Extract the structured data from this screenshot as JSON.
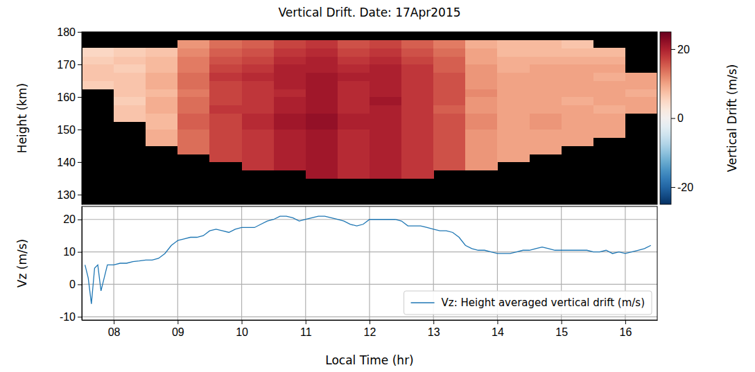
{
  "chart_data": [
    {
      "type": "heatmap",
      "title": "Vertical Drift. Date: 17Apr2015",
      "y_label": "Height (km)",
      "xlim": [
        7.5,
        16.5
      ],
      "ylim": [
        127,
        180
      ],
      "yticks": [
        130,
        140,
        150,
        160,
        170,
        180
      ],
      "tick_labels": "y",
      "cells": {
        "x": [
          7.75,
          8.25,
          8.75,
          9.25,
          9.75,
          10.25,
          10.75,
          11.25,
          11.75,
          12.25,
          12.75,
          13.25,
          13.75,
          14.25,
          14.75,
          15.25,
          15.75,
          16.25
        ],
        "y": [
          131.25,
          133.75,
          136.25,
          138.75,
          141.25,
          143.75,
          146.25,
          148.75,
          151.25,
          153.75,
          156.25,
          158.75,
          161.25,
          163.75,
          166.25,
          168.75,
          171.25,
          173.75,
          176.25,
          178.75
        ],
        "values": [
          [
            null,
            null,
            null,
            null,
            null,
            null,
            null,
            null,
            null,
            null,
            null,
            null,
            null,
            null,
            null,
            null,
            null,
            null
          ],
          [
            null,
            null,
            null,
            null,
            null,
            null,
            null,
            null,
            null,
            null,
            null,
            null,
            null,
            null,
            null,
            null,
            null,
            null
          ],
          [
            null,
            null,
            null,
            null,
            null,
            null,
            null,
            21,
            19,
            20,
            18,
            null,
            null,
            null,
            null,
            null,
            null,
            null
          ],
          [
            null,
            null,
            null,
            null,
            null,
            18,
            20,
            21,
            19,
            20,
            18,
            16,
            11,
            null,
            null,
            null,
            null,
            null
          ],
          [
            null,
            null,
            null,
            null,
            17,
            18,
            20,
            21,
            19,
            20,
            18,
            16,
            11,
            10,
            null,
            null,
            null,
            null
          ],
          [
            null,
            null,
            null,
            14,
            17,
            18,
            20,
            21,
            19,
            20,
            18,
            16,
            11,
            10,
            10,
            null,
            null,
            null
          ],
          [
            null,
            null,
            9,
            14,
            17,
            18,
            20,
            21,
            19,
            20,
            18,
            16,
            11,
            10,
            10,
            10,
            null,
            null
          ],
          [
            null,
            null,
            9,
            14,
            17,
            18,
            20,
            21,
            19,
            20,
            18,
            16,
            11,
            10,
            10,
            10,
            10,
            null
          ],
          [
            null,
            null,
            8,
            15,
            17,
            19,
            21,
            22,
            20,
            20,
            18,
            16,
            12,
            10,
            11,
            10,
            10,
            null
          ],
          [
            null,
            7,
            8,
            15,
            17,
            19,
            21,
            22,
            20,
            20,
            18,
            16,
            12,
            10,
            11,
            10,
            10,
            null
          ],
          [
            null,
            7,
            9,
            14,
            18,
            18,
            20,
            21,
            19,
            20,
            18,
            15,
            11,
            10,
            10,
            10,
            9,
            10
          ],
          [
            null,
            6,
            9,
            14,
            17,
            18,
            20,
            21,
            19,
            21,
            18,
            16,
            11,
            10,
            10,
            9,
            10,
            10
          ],
          [
            null,
            7,
            8,
            13,
            17,
            18,
            19,
            21,
            19,
            20,
            18,
            16,
            12,
            10,
            10,
            10,
            10,
            9
          ],
          [
            6,
            7,
            9,
            14,
            17,
            18,
            20,
            21,
            19,
            20,
            18,
            16,
            11,
            10,
            10,
            10,
            10,
            10
          ],
          [
            7,
            7,
            9,
            14,
            18,
            19,
            20,
            21,
            20,
            20,
            18,
            16,
            11,
            10,
            10,
            10,
            9,
            10
          ],
          [
            7,
            6,
            8,
            13,
            17,
            18,
            20,
            20,
            19,
            20,
            18,
            15,
            11,
            9,
            10,
            10,
            10,
            null
          ],
          [
            6,
            7,
            8,
            13,
            16,
            17,
            19,
            20,
            18,
            19,
            17,
            15,
            10,
            9,
            9,
            9,
            9,
            null
          ],
          [
            5,
            6,
            7,
            12,
            15,
            16,
            18,
            19,
            17,
            18,
            16,
            14,
            10,
            8,
            8,
            8,
            8,
            null
          ],
          [
            null,
            null,
            null,
            11,
            14,
            15,
            17,
            18,
            16,
            17,
            15,
            13,
            9,
            8,
            8,
            7,
            null,
            null
          ],
          [
            null,
            null,
            null,
            null,
            null,
            null,
            null,
            null,
            null,
            null,
            null,
            null,
            null,
            null,
            null,
            null,
            null,
            null
          ]
        ]
      },
      "colorbar": {
        "label": "Vertical Drift (m/s)",
        "range": [
          -25,
          25
        ],
        "ticks": [
          -20,
          0,
          20
        ]
      }
    },
    {
      "type": "line",
      "x_label": "Local Time (hr)",
      "y_label": "Vz (m/s)",
      "xlim": [
        7.5,
        16.5
      ],
      "ylim": [
        -11,
        24
      ],
      "xticks": [
        {
          "value": 8,
          "label": "08"
        },
        {
          "value": 9,
          "label": "09"
        },
        10,
        11,
        12,
        13,
        14,
        15,
        16
      ],
      "yticks": [
        -10,
        0,
        10,
        20
      ],
      "grid": true,
      "legend": "lower right",
      "x": [
        7.55,
        7.6,
        7.65,
        7.7,
        7.75,
        7.8,
        7.9,
        8.0,
        8.1,
        8.2,
        8.3,
        8.4,
        8.5,
        8.6,
        8.7,
        8.8,
        8.9,
        9.0,
        9.1,
        9.2,
        9.3,
        9.4,
        9.5,
        9.6,
        9.7,
        9.8,
        9.9,
        10.0,
        10.1,
        10.2,
        10.3,
        10.4,
        10.5,
        10.6,
        10.7,
        10.8,
        10.9,
        11.0,
        11.1,
        11.2,
        11.3,
        11.4,
        11.5,
        11.6,
        11.7,
        11.8,
        11.9,
        12.0,
        12.1,
        12.2,
        12.3,
        12.4,
        12.5,
        12.6,
        12.7,
        12.8,
        12.9,
        13.0,
        13.1,
        13.2,
        13.3,
        13.4,
        13.5,
        13.6,
        13.7,
        13.8,
        13.9,
        14.0,
        14.1,
        14.2,
        14.3,
        14.4,
        14.5,
        14.6,
        14.7,
        14.8,
        14.9,
        15.0,
        15.1,
        15.2,
        15.3,
        15.4,
        15.5,
        15.6,
        15.7,
        15.8,
        15.9,
        16.0,
        16.1,
        16.2,
        16.3,
        16.4
      ],
      "series": [
        {
          "name": "Vz: Height averaged vertical drift (m/s)",
          "color": "#1f77b4",
          "values": [
            6,
            2,
            -6,
            5,
            6,
            -2,
            6,
            6,
            6.5,
            6.5,
            7,
            7.2,
            7.5,
            7.5,
            8,
            9.5,
            12,
            13.5,
            14,
            14.5,
            14.5,
            15,
            16.5,
            17,
            16.5,
            16,
            17,
            17.5,
            17.5,
            17.5,
            18.5,
            19.5,
            20,
            21,
            21,
            20.5,
            19.5,
            20,
            20.5,
            21,
            21,
            20.5,
            20,
            19.5,
            18.5,
            18,
            18.5,
            20,
            20,
            20,
            20,
            20,
            19.5,
            18,
            18,
            18,
            17.5,
            17,
            16.5,
            16.5,
            16,
            14.5,
            12,
            11,
            10.5,
            10.5,
            10,
            9.5,
            9.5,
            9.5,
            10,
            10.5,
            10.5,
            11,
            11.5,
            11,
            10.5,
            10.5,
            10.5,
            10.5,
            10.5,
            10.5,
            10,
            10,
            10.5,
            9.5,
            10,
            9.5,
            10,
            10.5,
            11,
            12
          ]
        }
      ]
    }
  ]
}
